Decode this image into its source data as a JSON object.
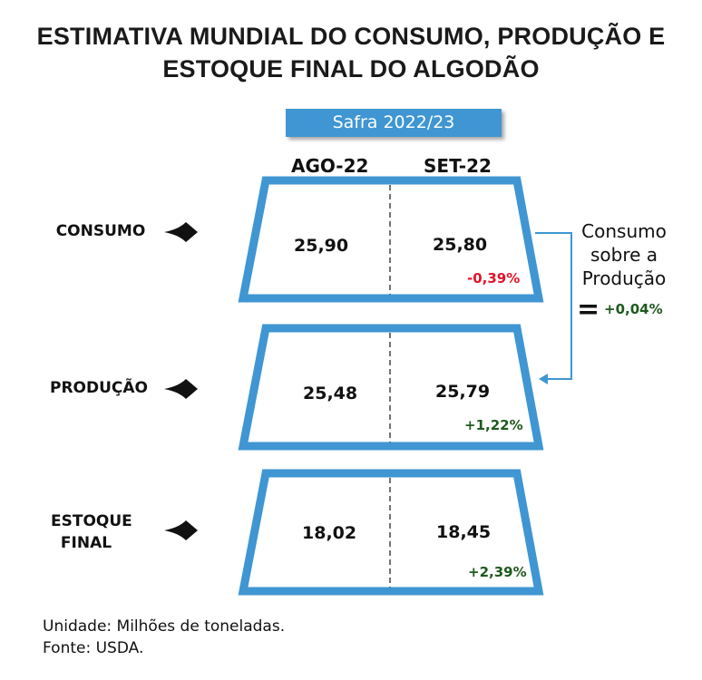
{
  "title": {
    "line1": "ESTIMATIVA MUNDIAL DO CONSUMO, PRODUÇÃO E",
    "line2": "ESTOQUE FINAL DO ALGODÃO"
  },
  "safra_label": "Safra 2022/23",
  "columns": [
    "AGO-22",
    "SET-22"
  ],
  "rows": [
    {
      "label_line1": "CONSUMO",
      "label_line2": "",
      "ago": "25,90",
      "set": "25,80",
      "change": "-0,39%",
      "change_direction": "negative"
    },
    {
      "label_line1": "PRODUÇÃO",
      "label_line2": "",
      "ago": "25,48",
      "set": "25,79",
      "change": "+1,22%",
      "change_direction": "positive"
    },
    {
      "label_line1": "ESTOQUE",
      "label_line2": "FINAL",
      "ago": "18,02",
      "set": "18,45",
      "change": "+2,39%",
      "change_direction": "positive"
    }
  ],
  "ratio_note": {
    "line1": "Consumo",
    "line2": "sobre a",
    "line3": "Produção",
    "equals": "=",
    "value": "+0,04%"
  },
  "footer": {
    "unit": "Unidade: Milhões de toneladas.",
    "source": "Fonte: USDA."
  },
  "colors": {
    "frame_blue": "#3f96d2",
    "negative": "#e0142a",
    "positive": "#1e5a1e"
  },
  "icons": [
    "arrow-right-icon",
    "arrow-right-icon",
    "arrow-right-icon"
  ]
}
